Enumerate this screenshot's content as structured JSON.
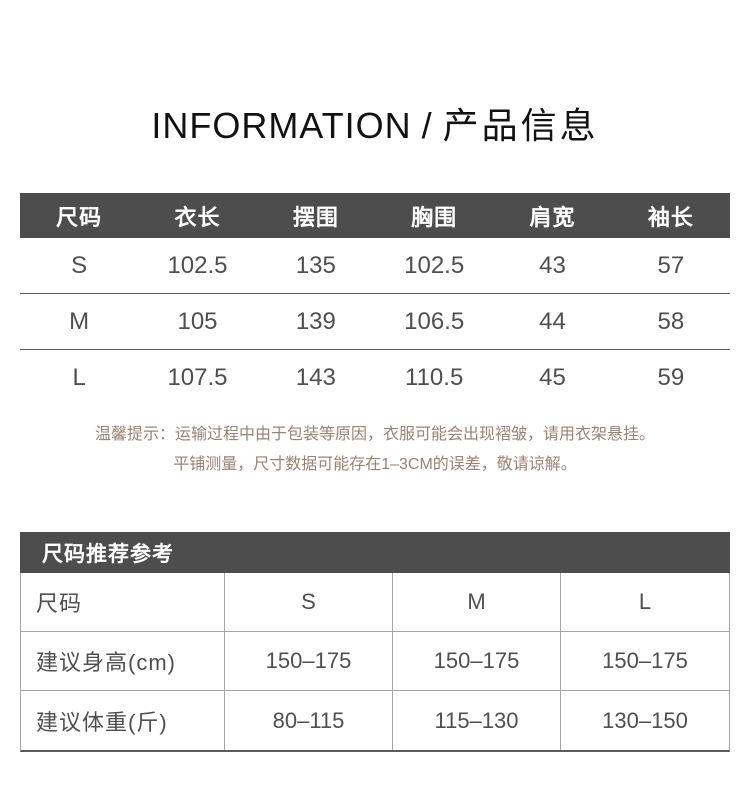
{
  "header": {
    "title_en": "INFORMATION",
    "title_sep": "/",
    "title_zh": "产品信息"
  },
  "size_table": {
    "columns": [
      "尺码",
      "衣长",
      "摆围",
      "胸围",
      "肩宽",
      "袖长"
    ],
    "rows": [
      {
        "size": "S",
        "values": [
          "102.5",
          "135",
          "102.5",
          "43",
          "57"
        ]
      },
      {
        "size": "M",
        "values": [
          "105",
          "139",
          "106.5",
          "44",
          "58"
        ]
      },
      {
        "size": "L",
        "values": [
          "107.5",
          "143",
          "110.5",
          "45",
          "59"
        ]
      }
    ]
  },
  "notice": {
    "line1": "温馨提示：运输过程中由于包装等原因，衣服可能会出现褶皱，请用衣架悬挂。",
    "line2": "平铺测量，尺寸数据可能存在1–3CM的误差，敬请谅解。"
  },
  "recommend_table": {
    "title": "尺码推荐参考",
    "rows": [
      {
        "label": "尺码",
        "values": [
          "S",
          "M",
          "L"
        ]
      },
      {
        "label": "建议身高(cm)",
        "values": [
          "150–175",
          "150–175",
          "150–175"
        ]
      },
      {
        "label": "建议体重(斤)",
        "values": [
          "80–115",
          "115–130",
          "130–150"
        ]
      }
    ]
  },
  "colors": {
    "header_bg": "#4d4d4d",
    "title_text": "#121212",
    "body_text": "#4f4f4f",
    "notice_text": "#9c8272",
    "border_dark": "#5c5c5c",
    "border_light": "#a6a6a6"
  }
}
